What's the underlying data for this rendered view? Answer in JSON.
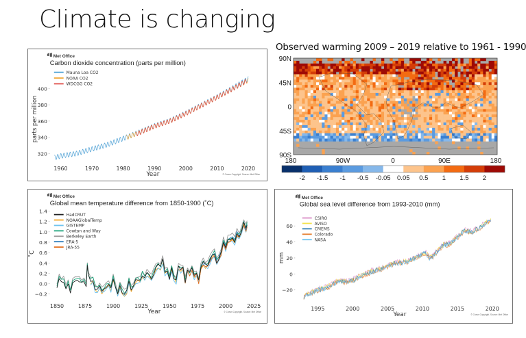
{
  "slide": {
    "title": "Climate is changing"
  },
  "chart_data": [
    {
      "id": "co2",
      "type": "line",
      "brand": "Met Office",
      "title": "Carbon dioxide concentration (parts per million)",
      "xlabel": "Year",
      "ylabel": "parts per million",
      "xlim": [
        1957,
        2022
      ],
      "ylim": [
        310,
        415
      ],
      "xticks": [
        1960,
        1970,
        1980,
        1990,
        2000,
        2010,
        2020
      ],
      "yticks": [
        320,
        340,
        360,
        380,
        400
      ],
      "copyright": "© Crown Copyright. Source: Met Office",
      "seasonal_amplitude_ppm": 3,
      "series": [
        {
          "name": "Mauna Loa CO2",
          "color": "#4a9fd4",
          "start": 1958,
          "end": 2020,
          "anchors": [
            [
              1958,
              315
            ],
            [
              1960,
              317
            ],
            [
              1965,
              320
            ],
            [
              1970,
              325.5
            ],
            [
              1975,
              331
            ],
            [
              1980,
              338.5
            ],
            [
              1985,
              346
            ],
            [
              1990,
              354
            ],
            [
              1995,
              360.5
            ],
            [
              2000,
              369.5
            ],
            [
              2005,
              379.5
            ],
            [
              2010,
              389.5
            ],
            [
              2015,
              400.5
            ],
            [
              2020,
              412
            ]
          ]
        },
        {
          "name": "NOAA CO2",
          "color": "#f2a93b",
          "start": 1981,
          "end": 2020,
          "anchors": [
            [
              1981,
              339.5
            ],
            [
              1985,
              345.5
            ],
            [
              1990,
              353.5
            ],
            [
              1995,
              360
            ],
            [
              2000,
              369
            ],
            [
              2005,
              379
            ],
            [
              2010,
              389
            ],
            [
              2015,
              399.5
            ],
            [
              2020,
              410
            ]
          ]
        },
        {
          "name": "WDCGG CO2",
          "color": "#e0504a",
          "start": 1984,
          "end": 2019.5,
          "anchors": [
            [
              1984,
              343.5
            ],
            [
              1990,
              353.5
            ],
            [
              1995,
              360
            ],
            [
              2000,
              369
            ],
            [
              2005,
              379
            ],
            [
              2010,
              389
            ],
            [
              2015,
              399.5
            ],
            [
              2019.5,
              409.5
            ]
          ]
        }
      ]
    },
    {
      "id": "warming-map",
      "type": "heatmap",
      "title": "Observed warming 2009 – 2019 relative to 1961 - 1990",
      "yticks": [
        "90N",
        "45N",
        "0",
        "45S",
        "90S"
      ],
      "xticks": [
        "180",
        "90W",
        "0",
        "90E",
        "180"
      ],
      "colorbar": {
        "boundaries": [
          "-2",
          "-1.5",
          "-1",
          "-0.5",
          "-0.05",
          "0.05",
          "0.5",
          "1",
          "1.5",
          "2"
        ],
        "colors": [
          "#08306b",
          "#1f5fb4",
          "#3a7fd0",
          "#5b9be0",
          "#86b8ea",
          "#ffffff",
          "#fdc48c",
          "#fba250",
          "#f36b12",
          "#d43d08",
          "#9e0a05"
        ]
      },
      "land_mask_color": "#a8a8a8",
      "lat_bands": [
        {
          "lat": "75N-90N",
          "pattern": "grey-with-dark-red"
        },
        {
          "lat": "60N-75N",
          "pattern": "dark-red-and-red"
        },
        {
          "lat": "30N-60N",
          "pattern": "orange-with-red-over-eurasia"
        },
        {
          "lat": "30S-30N",
          "pattern": "light-orange-to-orange"
        },
        {
          "lat": "55S-30S",
          "pattern": "light-orange-with-blue-patches"
        },
        {
          "lat": "65S-55S",
          "pattern": "blue-and-white"
        },
        {
          "lat": "90S-65S",
          "pattern": "grey"
        }
      ]
    },
    {
      "id": "temperature",
      "type": "line",
      "brand": "Met Office",
      "title": "Global mean temperature difference from 1850-1900 (˚C)",
      "xlabel": "Year",
      "ylabel": "˚C",
      "xlim": [
        1845,
        2028
      ],
      "ylim": [
        -0.3,
        1.45
      ],
      "xticks": [
        1850,
        1875,
        1900,
        1925,
        1950,
        1975,
        2000,
        2025
      ],
      "yticks": [
        -0.2,
        0.0,
        0.2,
        0.4,
        0.6,
        0.8,
        1.0,
        1.2,
        1.4
      ],
      "ytick_labels": [
        "−0.2",
        "0.0",
        "0.2",
        "0.4",
        "0.6",
        "0.8",
        "1.0",
        "1.2",
        "1.4"
      ],
      "copyright": "© Crown Copyright. Source: Met Office",
      "reference_anomaly": {
        "years": [
          1850,
          1852,
          1854,
          1856,
          1858,
          1860,
          1862,
          1864,
          1866,
          1868,
          1870,
          1872,
          1874,
          1876,
          1877,
          1878,
          1880,
          1882,
          1884,
          1886,
          1888,
          1890,
          1892,
          1894,
          1896,
          1898,
          1900,
          1902,
          1904,
          1906,
          1908,
          1910,
          1912,
          1914,
          1916,
          1918,
          1920,
          1922,
          1924,
          1926,
          1928,
          1930,
          1932,
          1934,
          1936,
          1938,
          1940,
          1942,
          1944,
          1946,
          1948,
          1950,
          1952,
          1954,
          1956,
          1958,
          1960,
          1962,
          1964,
          1966,
          1968,
          1970,
          1972,
          1974,
          1976,
          1978,
          1980,
          1982,
          1984,
          1986,
          1988,
          1990,
          1992,
          1994,
          1996,
          1998,
          2000,
          2002,
          2004,
          2006,
          2008,
          2010,
          2012,
          2014,
          2016,
          2018,
          2019
        ],
        "values": [
          -0.05,
          0.1,
          0.05,
          0.05,
          -0.12,
          0.0,
          -0.18,
          0.02,
          0.05,
          0.08,
          0.05,
          0.02,
          0.06,
          -0.05,
          0.35,
          0.15,
          0.05,
          0.08,
          -0.1,
          -0.12,
          -0.05,
          -0.15,
          -0.1,
          -0.05,
          0.0,
          -0.1,
          0.12,
          -0.05,
          -0.2,
          -0.05,
          -0.15,
          -0.2,
          -0.15,
          0.05,
          -0.1,
          -0.05,
          0.05,
          0.08,
          0.05,
          0.18,
          0.1,
          0.2,
          0.15,
          0.1,
          0.2,
          0.3,
          0.35,
          0.32,
          0.45,
          0.2,
          0.25,
          0.1,
          0.3,
          0.12,
          0.05,
          0.32,
          0.28,
          0.3,
          0.05,
          0.25,
          0.2,
          0.3,
          0.15,
          0.2,
          0.05,
          0.32,
          0.4,
          0.35,
          0.35,
          0.45,
          0.55,
          0.58,
          0.42,
          0.5,
          0.6,
          0.82,
          0.7,
          0.85,
          0.85,
          0.88,
          0.82,
          0.97,
          0.92,
          1.0,
          1.18,
          1.05,
          1.15
        ]
      },
      "series": [
        {
          "name": "HadCRUT",
          "color": "#222222",
          "offset": 0.0,
          "start": 1850
        },
        {
          "name": "NOAAGlobalTemp",
          "color": "#f5a623",
          "offset": -0.03,
          "start": 1880
        },
        {
          "name": "GISTEMP",
          "color": "#6ec3ef",
          "offset": -0.05,
          "start": 1880
        },
        {
          "name": "Cowtan and Way",
          "color": "#1aa37a",
          "offset": 0.03,
          "start": 1850
        },
        {
          "name": "Berkeley Earth",
          "color": "#999999",
          "offset": 0.07,
          "start": 1850
        },
        {
          "name": "ERA-5",
          "color": "#2b7bba",
          "offset": 0.01,
          "start": 1979
        },
        {
          "name": "JRA-55",
          "color": "#e3701f",
          "offset": -0.03,
          "start": 1958
        }
      ]
    },
    {
      "id": "sea-level",
      "type": "line",
      "brand": "Met Office",
      "title": "Global sea level difference from 1993-2010 (mm)",
      "xlabel": "Year",
      "ylabel": "mm",
      "xlim": [
        1992,
        2021.5
      ],
      "ylim": [
        -35,
        75
      ],
      "xticks": [
        1995,
        2000,
        2005,
        2010,
        2015,
        2020
      ],
      "yticks": [
        -20,
        0,
        20,
        40,
        60
      ],
      "ytick_labels": [
        "−20",
        "0",
        "20",
        "40",
        "60"
      ],
      "copyright": "© Crown Copyright. Source: Met Office",
      "reference_level": {
        "years": [
          1993,
          1994,
          1995,
          1996,
          1997,
          1998,
          1999,
          2000,
          2001,
          2002,
          2003,
          2004,
          2005,
          2006,
          2007,
          2008,
          2009,
          2010,
          2010.5,
          2011,
          2011.5,
          2012,
          2013,
          2014,
          2015,
          2016,
          2017,
          2018,
          2019,
          2019.8
        ],
        "values": [
          -28,
          -24,
          -20,
          -18,
          -14,
          -8,
          -10,
          -8,
          -3,
          0,
          4,
          6,
          10,
          13,
          14,
          16,
          20,
          25,
          26,
          20,
          22,
          27,
          36,
          38,
          46,
          54,
          52,
          57,
          63,
          66
        ]
      },
      "series": [
        {
          "name": "CSIRO",
          "color": "#d98cc6",
          "offset": 1.5
        },
        {
          "name": "AVISO",
          "color": "#f3e24a",
          "offset": 0.5
        },
        {
          "name": "CMEMS",
          "color": "#2e7eb5",
          "offset": 0.0
        },
        {
          "name": "Colorado",
          "color": "#e67e2e",
          "offset": -1.0
        },
        {
          "name": "NASA",
          "color": "#6ec3ef",
          "offset": -0.5
        }
      ]
    }
  ]
}
